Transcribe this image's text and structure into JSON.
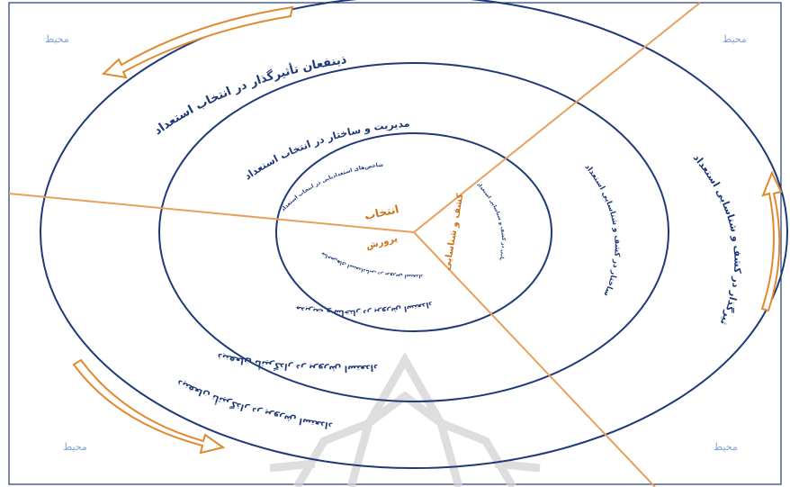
{
  "corners": {
    "top_left": "محیط",
    "top_right": "محیط",
    "bottom_left": "محیط",
    "bottom_right": "محیط"
  },
  "outer_ring": {
    "top": "ذینفعان تأثیرگذار در انتخاب استعداد",
    "right": "ذینفعان تأثیرگذار در کشف و شناسایی استعداد",
    "bottom_upper": "ذینفعان تأثیرگذار در پرورش استعداد",
    "bottom_lower": "ذینفعان تأثیرگذار در پرورش استعداد"
  },
  "middle_ring": {
    "top": "مدیریت و ساختار در انتخاب استعداد",
    "right": "مدیریت و ساختار در کشف و شناسایی استعداد",
    "bottom": "مدیریت و ساختار در پرورش استعداد"
  },
  "inner_ring": {
    "top": "شاخص‌های استعدادیابی در انتخاب استعداد",
    "right": "شاخص‌های استعدادیابی در کشف و شناسایی استعداد",
    "bottom": "شاخص‌های استعدادیابی در پرورش استعداد"
  },
  "center": {
    "select": "انتخاب",
    "discover": "کشف و شناسایی",
    "develop": "پرورش"
  },
  "colors": {
    "ring": "#1f3a78",
    "divider": "#e8a05c",
    "arrow": "#e08a30",
    "corner_text": "#7fa4d9",
    "watermark": "#d3d3d3"
  }
}
